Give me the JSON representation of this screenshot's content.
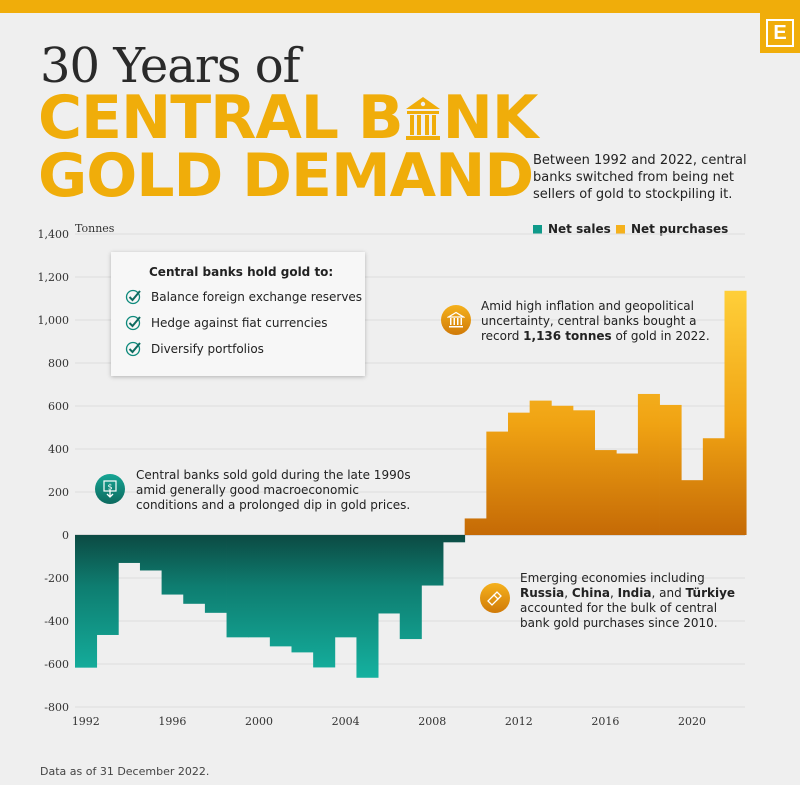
{
  "header": {
    "logo_letter": "E",
    "title_line1": "30 Years of",
    "title_line2_a": "CENTRAL B",
    "title_line2_b": "NK",
    "title_line3": "GOLD DEMAND",
    "subtitle": "Between 1992 and 2022, central banks switched from being net sellers of gold to stockpiling it."
  },
  "legend": {
    "sales_label": "Net sales",
    "purchases_label": "Net purchases",
    "sales_color": "#0f9a8a",
    "purchases_color": "#f5b11c"
  },
  "callout_box": {
    "title": "Central banks hold gold to:",
    "items": [
      "Balance foreign exchange reserves",
      "Hedge against fiat currencies",
      "Diversify portfolios"
    ]
  },
  "annotations": {
    "inflation_a": "Amid high inflation and geopolitical uncertainty, central banks bought a record ",
    "inflation_bold": "1,136 tonnes",
    "inflation_b": " of gold in 2022.",
    "sold_text": "Central banks sold gold during the late 1990s amid generally good macroeconomic conditions and a prolonged dip in gold prices.",
    "emerging_a": "Emerging economies including ",
    "emerging_russia": "Russia",
    "emerging_sep1": ", ",
    "emerging_china": "China",
    "emerging_sep2": ", ",
    "emerging_india": "India",
    "emerging_sep3": ", and ",
    "emerging_turkiye": "Türkiye",
    "emerging_b": " accounted for the bulk of central bank gold purchases since 2010."
  },
  "footnote": "Data as of 31 December 2022.",
  "chart_data": {
    "type": "bar",
    "ylabel": "Tonnes",
    "ylim": [
      -800,
      1400
    ],
    "yticks": [
      -800,
      -600,
      -400,
      -200,
      0,
      200,
      400,
      600,
      800,
      1000,
      1200,
      1400
    ],
    "ytick_labels": [
      "-800",
      "-600",
      "-400",
      "-200",
      "0",
      "200",
      "400",
      "600",
      "800",
      "1,000",
      "1,200",
      "1,400"
    ],
    "xticks": [
      1992,
      1996,
      2000,
      2004,
      2008,
      2012,
      2016,
      2020
    ],
    "grid": true,
    "legend_position": "top-right",
    "x": [
      1992,
      1993,
      1994,
      1995,
      1996,
      1997,
      1998,
      1999,
      2000,
      2001,
      2002,
      2003,
      2004,
      2005,
      2006,
      2007,
      2008,
      2009,
      2010,
      2011,
      2012,
      2013,
      2014,
      2015,
      2016,
      2017,
      2018,
      2019,
      2020,
      2021,
      2022
    ],
    "values": [
      -617,
      -465,
      -130,
      -165,
      -277,
      -320,
      -362,
      -476,
      -476,
      -518,
      -546,
      -616,
      -476,
      -664,
      -365,
      -484,
      -235,
      -34,
      77,
      481,
      569,
      625,
      601,
      580,
      395,
      379,
      656,
      605,
      255,
      450,
      1136
    ]
  }
}
